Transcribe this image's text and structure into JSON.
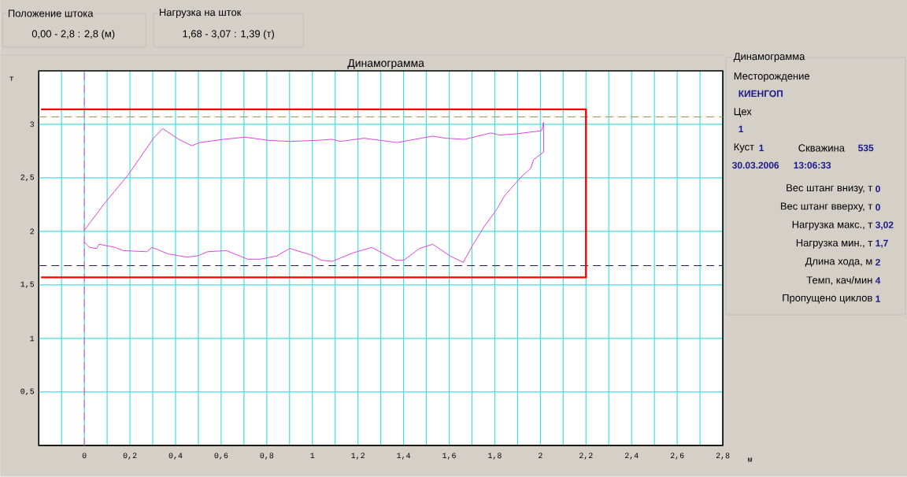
{
  "chart_data": {
    "type": "line",
    "title": "Динамограмма",
    "xlabel": "м",
    "ylabel": "т",
    "xlim": [
      -0.2,
      2.8
    ],
    "ylim": [
      0,
      3.5
    ],
    "xticks": [
      {
        "value": -0.1,
        "label": null
      },
      0,
      {
        "value": 0.1,
        "label": null
      },
      {
        "value": 0.2,
        "label": "0,2"
      },
      {
        "value": 0.3,
        "label": null
      },
      {
        "value": 0.4,
        "label": "0,4"
      },
      {
        "value": 0.5,
        "label": null
      },
      {
        "value": 0.6,
        "label": "0,6"
      },
      {
        "value": 0.7,
        "label": null
      },
      {
        "value": 0.8,
        "label": "0,8"
      },
      {
        "value": 0.9,
        "label": null
      },
      1,
      {
        "value": 1.1,
        "label": null
      },
      {
        "value": 1.2,
        "label": "1,2"
      },
      {
        "value": 1.3,
        "label": null
      },
      {
        "value": 1.4,
        "label": "1,4"
      },
      {
        "value": 1.5,
        "label": null
      },
      {
        "value": 1.6,
        "label": "1,6"
      },
      {
        "value": 1.7,
        "label": null
      },
      {
        "value": 1.8,
        "label": "1,8"
      },
      {
        "value": 1.9,
        "label": null
      },
      2,
      {
        "value": 2.1,
        "label": null
      },
      {
        "value": 2.2,
        "label": "2,2"
      },
      {
        "value": 2.3,
        "label": null
      },
      {
        "value": 2.4,
        "label": "2,4"
      },
      {
        "value": 2.5,
        "label": null
      },
      {
        "value": 2.6,
        "label": "2,6"
      },
      {
        "value": 2.7,
        "label": null
      },
      {
        "value": 2.8,
        "label": "2,8"
      }
    ],
    "yticks": [
      {
        "value": 0.5,
        "label": "0,5"
      },
      1,
      {
        "value": 1.5,
        "label": "1,5"
      },
      2,
      {
        "value": 2.5,
        "label": "2,5"
      },
      3
    ],
    "grid": true,
    "series": [
      {
        "color": "#dd44dd",
        "x": [
          0,
          0.088,
          0.193,
          0.303,
          0.344,
          0.414,
          0.471,
          0.506,
          0.611,
          0.704,
          0.74,
          0.808,
          0.901,
          1.017,
          1.087,
          1.122,
          1.226,
          1.372,
          1.528,
          1.585,
          1.668,
          1.784,
          1.819,
          1.889,
          2.005,
          2.014,
          2.014,
          1.97,
          1.958,
          1.912,
          1.842,
          1.807,
          1.755,
          1.703,
          1.662,
          1.604,
          1.528,
          1.47,
          1.401,
          1.366,
          1.261,
          1.18,
          1.087,
          1.04,
          0.994,
          0.901,
          0.843,
          0.773,
          0.716,
          0.623,
          0.541,
          0.495,
          0.448,
          0.367,
          0.297,
          0.274,
          0.17,
          0.135,
          0.065,
          0.054,
          0.023,
          0
        ],
        "values": [
          2.01,
          2.26,
          2.53,
          2.87,
          2.96,
          2.86,
          2.8,
          2.83,
          2.86,
          2.88,
          2.87,
          2.85,
          2.84,
          2.85,
          2.86,
          2.84,
          2.87,
          2.83,
          2.89,
          2.87,
          2.86,
          2.92,
          2.9,
          2.91,
          2.94,
          3.02,
          2.74,
          2.67,
          2.59,
          2.5,
          2.33,
          2.2,
          2.05,
          1.87,
          1.71,
          1.77,
          1.88,
          1.84,
          1.73,
          1.73,
          1.85,
          1.8,
          1.72,
          1.73,
          1.78,
          1.84,
          1.77,
          1.74,
          1.74,
          1.82,
          1.81,
          1.77,
          1.76,
          1.79,
          1.85,
          1.81,
          1.82,
          1.85,
          1.88,
          1.84,
          1.85,
          1.9
        ]
      },
      {
        "color": "#ff0000",
        "x": [
          -0.19,
          2.2,
          2.2,
          -0.19
        ],
        "values": [
          3.14,
          3.14,
          1.57,
          1.57
        ]
      }
    ],
    "ref_lines": [
      {
        "axis": "x",
        "value": 0,
        "color": "#e060c0",
        "line_style": "dashed"
      },
      {
        "axis": "y",
        "value": 3.07,
        "color": "#a09850",
        "line_style": "dashed"
      },
      {
        "axis": "y",
        "value": 1.68,
        "color": "#202060",
        "line_style": "dashed"
      }
    ],
    "annotations": [
      "Положение штока",
      "0,00 - 2,8 : 2,8 (м)",
      "Нагрузка на шток",
      "1,68 - 3,07 : 1,39 (т)",
      "Динамограмма",
      "Месторождение",
      "КИЕНГОП",
      "Цех",
      "1",
      "Куст",
      "1",
      "Скважина",
      "535",
      "30.03.2006",
      "13:06:33",
      "Вес штанг внизу, т",
      "0",
      "Вес штанг вверху, т",
      "0",
      "Нагрузка макс., т",
      "3,02",
      "Нагрузка мин., т",
      "1,7",
      "Длина хода, м",
      "2",
      "Темп, кач/мин",
      "4",
      "Пропущено циклов",
      "1"
    ]
  }
}
